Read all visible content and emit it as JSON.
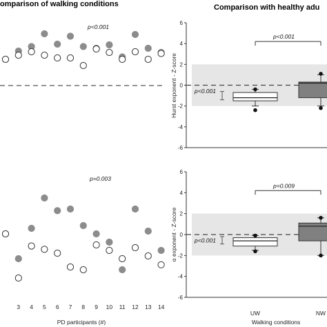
{
  "chart_data": [
    {
      "type": "scatter",
      "panel": "top-left",
      "title": "omparison of walking conditions",
      "annotation": "p<0.001",
      "x": [
        2,
        3,
        4,
        5,
        6,
        7,
        8,
        9,
        10,
        11,
        12,
        13,
        14
      ],
      "xticks": [
        "3",
        "4",
        "5",
        "6",
        "7",
        "8",
        "9",
        "10",
        "11",
        "12",
        "13",
        "14"
      ],
      "series": [
        {
          "fill": "#8c8c8c",
          "values": [
            0.68,
            0.92,
            1.05,
            1.42,
            1.12,
            1.35,
            1.05,
            1.0,
            1.1,
            0.75,
            1.4,
            1.0,
            0.88
          ]
        },
        {
          "fill": "#ffffff",
          "values": [
            0.68,
            0.8,
            0.9,
            0.8,
            0.72,
            0.72,
            0.5,
            0.98,
            0.88,
            0.68,
            0.9,
            0.68,
            0.85
          ]
        }
      ],
      "reference_line": 0
    },
    {
      "type": "box",
      "panel": "top-right",
      "title": "Comparison with healthy adu",
      "ylabel": "Hurst exponent - Z-score",
      "yticks": [
        "6",
        "4",
        "2",
        "0",
        "-2",
        "-4",
        "-6"
      ],
      "ylim": [
        -6,
        6
      ],
      "categories": [
        "UW",
        "NW"
      ],
      "band": [
        -2,
        2
      ],
      "reference_line": 0,
      "annotation_between": "p<0.001",
      "annotation_left": "p<0.001",
      "boxes": [
        {
          "name": "UW",
          "fill": "#ffffff",
          "whisker_low": -2.0,
          "q1": -1.5,
          "median": -1.2,
          "q3": -0.7,
          "whisker_high": -0.4,
          "outliers": [
            -2.4,
            -0.4
          ]
        },
        {
          "name": "NW",
          "fill": "#808080",
          "whisker_low": -2.0,
          "q1": -1.2,
          "median": 0.2,
          "q3": 0.3,
          "whisker_high": 1.0,
          "outliers": [
            -2.2,
            1.1
          ]
        }
      ],
      "left_whisker": {
        "low": -1.4,
        "high": -0.6
      }
    },
    {
      "type": "scatter",
      "panel": "bottom-left",
      "annotation": "p=0.003",
      "xlabel": "PD participants (#)",
      "x": [
        2,
        3,
        4,
        5,
        6,
        7,
        8,
        9,
        10,
        11,
        12,
        13,
        14
      ],
      "xticks": [
        "3",
        "4",
        "5",
        "6",
        "7",
        "8",
        "9",
        "10",
        "11",
        "12",
        "13",
        "14"
      ],
      "series": [
        {
          "fill": "#8c8c8c",
          "values": [
            0.8,
            0.35,
            0.9,
            1.45,
            1.22,
            1.25,
            0.95,
            0.8,
            0.65,
            0.15,
            1.25,
            0.85,
            0.5
          ]
        },
        {
          "fill": "#ffffff",
          "values": [
            0.8,
            0.0,
            0.58,
            0.52,
            0.45,
            0.2,
            0.15,
            0.6,
            0.5,
            0.35,
            0.55,
            0.4,
            0.24
          ]
        }
      ]
    },
    {
      "type": "box",
      "panel": "bottom-right",
      "ylabel": "α exponent - Z-score",
      "xlabel": "Walking conditions",
      "yticks": [
        "6",
        "4",
        "2",
        "0",
        "-2",
        "-4",
        "-6"
      ],
      "ylim": [
        -6,
        6
      ],
      "categories": [
        "UW",
        "NW"
      ],
      "band": [
        -2,
        2
      ],
      "reference_line": 0,
      "annotation_between": "p=0.009",
      "annotation_left": "p<0.001",
      "boxes": [
        {
          "name": "UW",
          "fill": "#ffffff",
          "whisker_low": -1.5,
          "q1": -1.1,
          "median": -0.6,
          "q3": -0.3,
          "whisker_high": -0.1,
          "outliers": [
            -1.6,
            -0.1
          ]
        },
        {
          "name": "NW",
          "fill": "#808080",
          "whisker_low": -2.0,
          "q1": -0.6,
          "median": 0.8,
          "q3": 1.1,
          "whisker_high": 1.6,
          "outliers": [
            -2.0,
            1.6
          ]
        }
      ],
      "left_whisker": {
        "low": -0.9,
        "high": -0.2
      }
    }
  ]
}
